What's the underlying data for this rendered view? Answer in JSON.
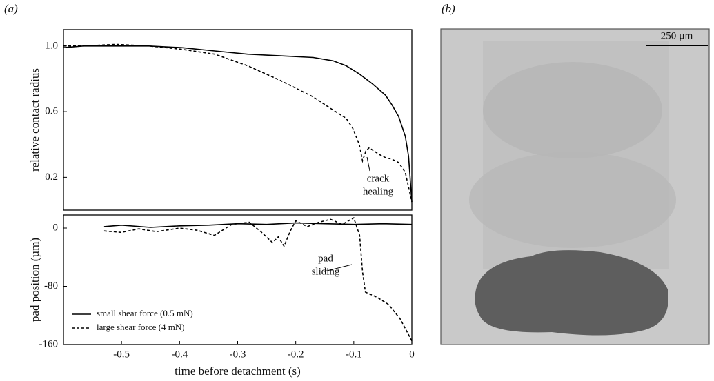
{
  "panel_labels": [
    "(a)",
    "(b)"
  ],
  "scale_bar": "250 µm",
  "chart_data": [
    {
      "type": "line",
      "ylabel": "relative contact radius",
      "xlim": [
        -0.53,
        0
      ],
      "ylim": [
        0,
        1.1
      ],
      "yticks": [
        {
          "value": 1,
          "label": "1.0"
        },
        0.6,
        0.2
      ],
      "annotations": [
        [
          "crack",
          "healing"
        ]
      ],
      "series": [
        {
          "name": "small shear force (0.5 mN)",
          "color": "#000000",
          "linestyle": "solid",
          "x": [
            -0.53,
            -0.5,
            -0.45,
            -0.4,
            -0.35,
            -0.3,
            -0.25,
            -0.2,
            -0.15,
            -0.12,
            -0.1,
            -0.08,
            -0.06,
            -0.04,
            -0.03,
            -0.02,
            -0.01,
            -0.005,
            0
          ],
          "values": [
            0.99,
            1.0,
            1.0,
            1.0,
            0.99,
            0.97,
            0.95,
            0.94,
            0.93,
            0.91,
            0.88,
            0.83,
            0.77,
            0.7,
            0.64,
            0.57,
            0.45,
            0.33,
            0.05
          ]
        },
        {
          "name": "large shear force (4 mN)",
          "color": "#000000",
          "linestyle": "dashed",
          "x": [
            -0.53,
            -0.5,
            -0.45,
            -0.4,
            -0.35,
            -0.3,
            -0.25,
            -0.2,
            -0.15,
            -0.12,
            -0.1,
            -0.09,
            -0.08,
            -0.075,
            -0.07,
            -0.065,
            -0.05,
            -0.04,
            -0.03,
            -0.02,
            -0.01,
            0
          ],
          "values": [
            1.0,
            1.0,
            1.01,
            1.0,
            0.98,
            0.95,
            0.88,
            0.79,
            0.69,
            0.61,
            0.56,
            0.5,
            0.4,
            0.3,
            0.36,
            0.38,
            0.34,
            0.32,
            0.31,
            0.29,
            0.23,
            0.05
          ]
        }
      ]
    },
    {
      "type": "line",
      "xlabel": "time before detachment (s)",
      "ylabel": "pad position (µm)",
      "xlim": [
        -0.6,
        0
      ],
      "ylim": [
        -160,
        18
      ],
      "xticks": [
        -0.5,
        -0.4,
        -0.3,
        -0.2,
        -0.1,
        0
      ],
      "yticks": [
        0,
        -80,
        -160
      ],
      "legend": "lower left",
      "annotations": [
        [
          "pad",
          "sliding"
        ]
      ],
      "series": [
        {
          "name": "small shear force (0.5 mN)",
          "color": "#000000",
          "linestyle": "solid",
          "x": [
            -0.53,
            -0.5,
            -0.45,
            -0.4,
            -0.35,
            -0.3,
            -0.25,
            -0.2,
            -0.15,
            -0.1,
            -0.05,
            0
          ],
          "values": [
            2,
            4,
            1,
            3,
            4,
            6,
            5,
            7,
            6,
            5,
            6,
            5
          ]
        },
        {
          "name": "large shear force (4 mN)",
          "color": "#000000",
          "linestyle": "dashed",
          "x": [
            -0.53,
            -0.5,
            -0.47,
            -0.44,
            -0.4,
            -0.37,
            -0.34,
            -0.31,
            -0.28,
            -0.26,
            -0.24,
            -0.23,
            -0.22,
            -0.21,
            -0.2,
            -0.18,
            -0.16,
            -0.14,
            -0.12,
            -0.1,
            -0.09,
            -0.085,
            -0.08,
            -0.06,
            -0.04,
            -0.02,
            0
          ],
          "values": [
            -4,
            -6,
            -1,
            -5,
            0,
            -3,
            -10,
            5,
            8,
            -5,
            -20,
            -12,
            -25,
            -5,
            10,
            2,
            8,
            12,
            5,
            14,
            -10,
            -60,
            -88,
            -95,
            -105,
            -125,
            -155
          ]
        }
      ]
    }
  ]
}
